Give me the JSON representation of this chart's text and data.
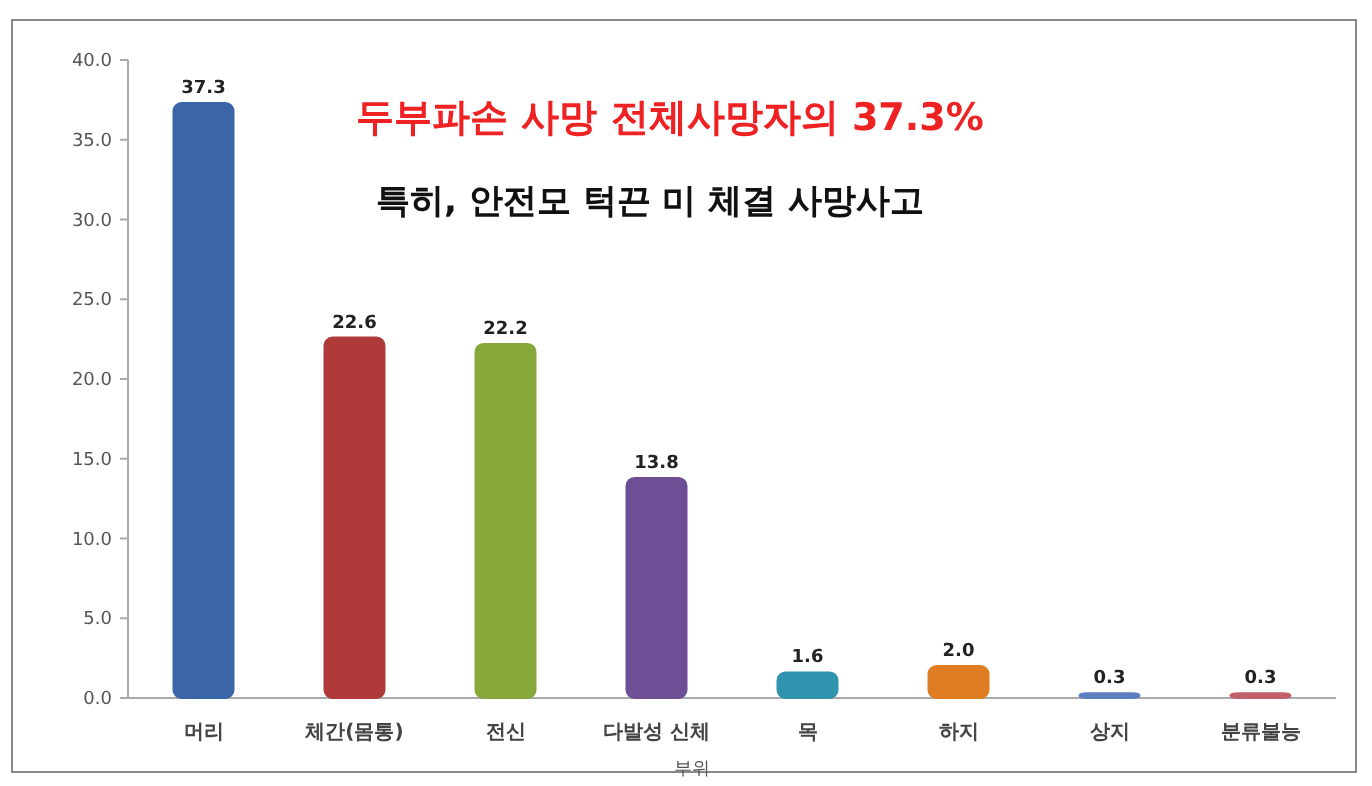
{
  "chart_data": {
    "type": "bar",
    "xlabel": "부위",
    "categories": [
      "머리",
      "체간(몸통)",
      "전신",
      "다발성 신체",
      "목",
      "하지",
      "상지",
      "분류불능"
    ],
    "values": [
      37.3,
      22.6,
      22.2,
      13.8,
      1.6,
      2.0,
      0.3,
      0.3
    ],
    "value_labels": [
      "37.3",
      "22.6",
      "22.2",
      "13.8",
      "1.6",
      "2.0",
      "0.3",
      "0.3"
    ],
    "colors": [
      "#3a66a8",
      "#b03a3a",
      "#86a83a",
      "#6e4f96",
      "#2f94ad",
      "#e07d22",
      "#5b7fbf",
      "#c0606a"
    ],
    "ylim": [
      0,
      40
    ],
    "yticks": [
      {
        "value": 0,
        "label": "0.0"
      },
      {
        "value": 5,
        "label": "5.0"
      },
      {
        "value": 10,
        "label": "10.0"
      },
      {
        "value": 15,
        "label": "15.0"
      },
      {
        "value": 20,
        "label": "20.0"
      },
      {
        "value": 25,
        "label": "25.0"
      },
      {
        "value": 30,
        "label": "30.0"
      },
      {
        "value": 35,
        "label": "35.0"
      },
      {
        "value": 40,
        "label": "40.0"
      }
    ],
    "annotations": [
      "두부파손 사망 전체사망자의 37.3%",
      "특히, 안전모 턱끈 미 체결 사망사고"
    ],
    "grid": false
  }
}
